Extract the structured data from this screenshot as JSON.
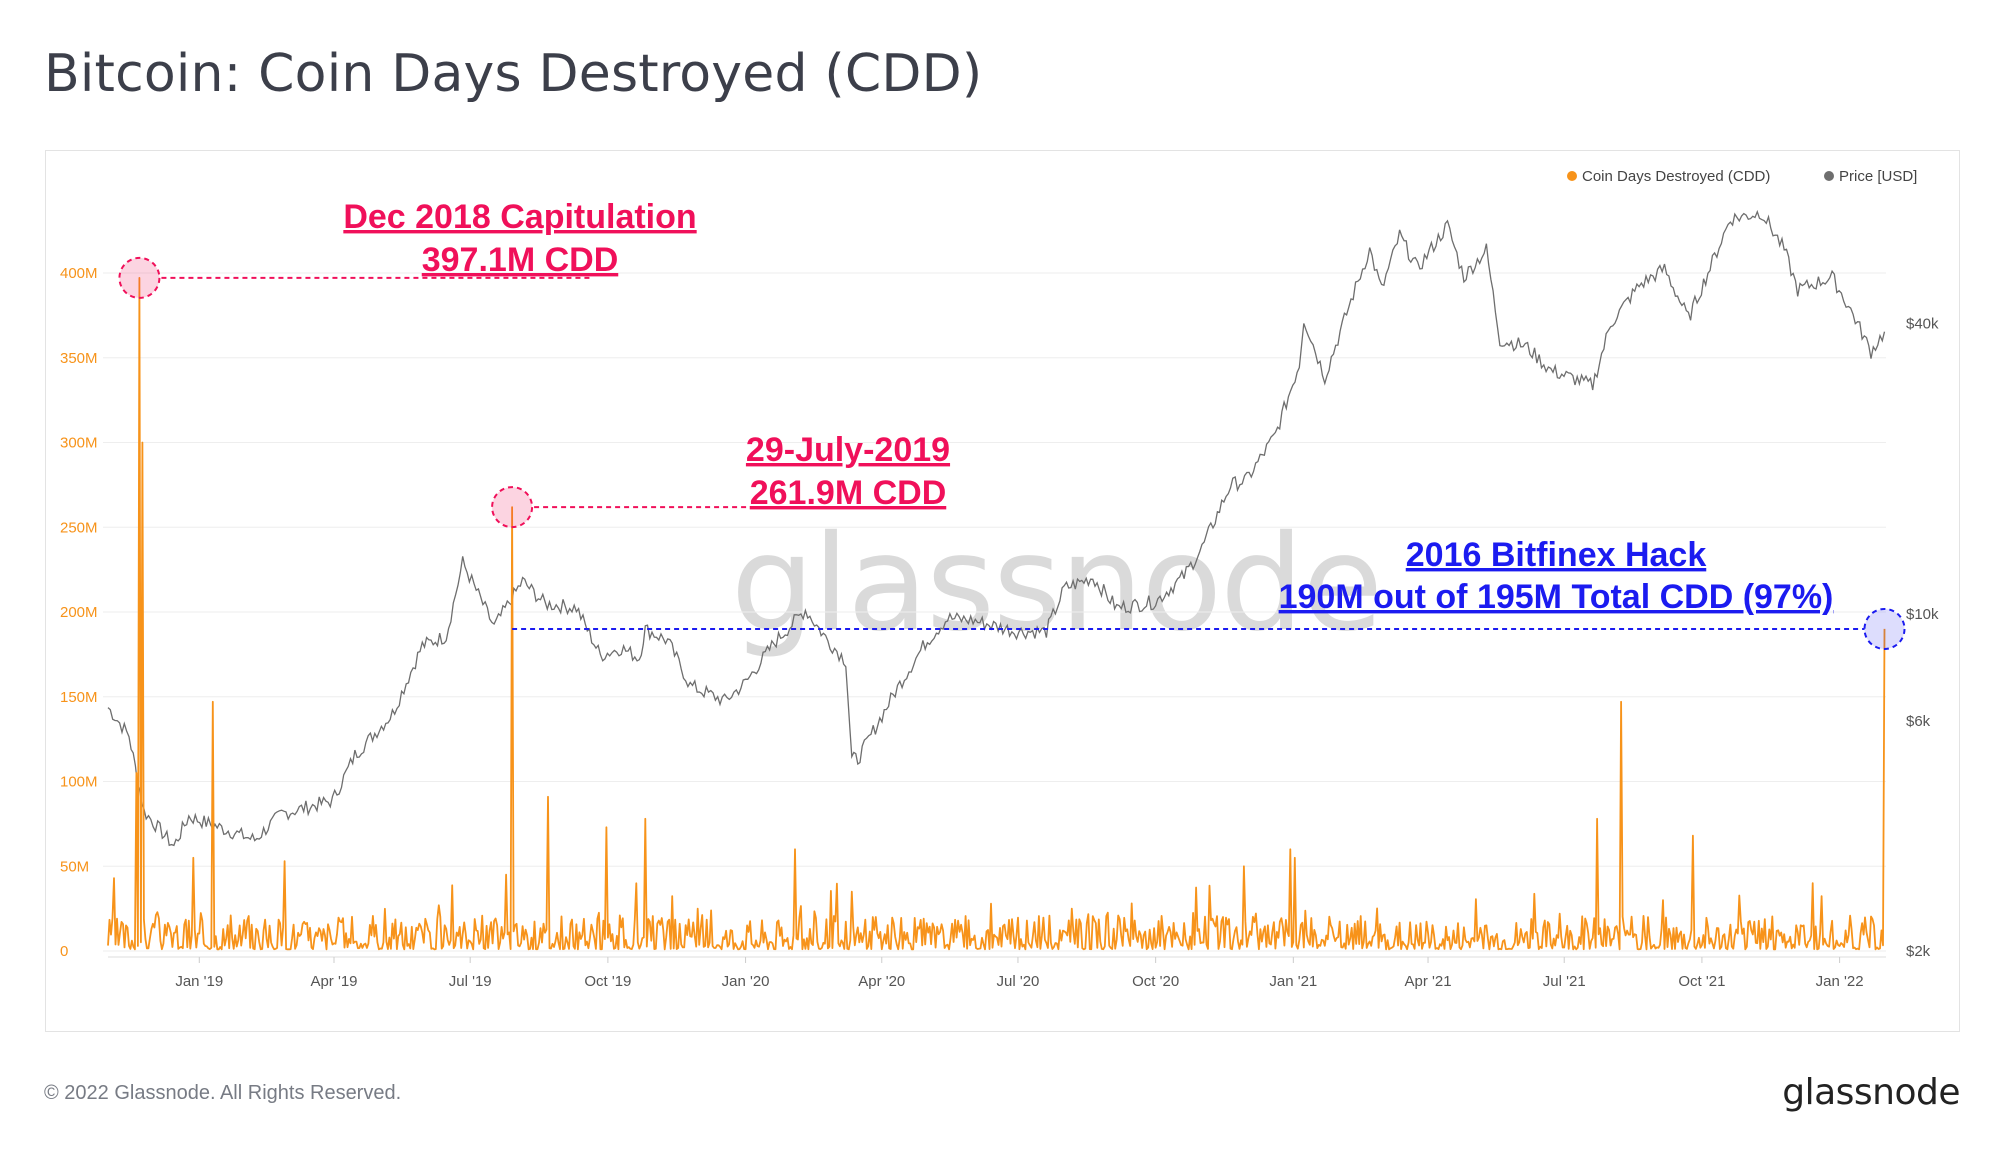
{
  "header": {
    "title": "Bitcoin: Coin Days Destroyed (CDD)"
  },
  "footer": {
    "copyright": "© 2022 Glassnode. All Rights Reserved.",
    "logo": "glassnode"
  },
  "watermark": "glassnode",
  "colors": {
    "cdd": "#f7931a",
    "price": "#6e6e6e",
    "pink": "#f0105a",
    "blue": "#1b1bf0",
    "axis_text": "#f7931a",
    "right_axis_text": "#555555"
  },
  "legend": [
    {
      "label": "Coin Days Destroyed (CDD)",
      "color": "#f7931a"
    },
    {
      "label": "Price [USD]",
      "color": "#6e6e6e"
    }
  ],
  "annotations": [
    {
      "line1": "Dec 2018 Capitulation",
      "line2": "397.1M CDD",
      "color": "#f0105a"
    },
    {
      "line1": "29-July-2019",
      "line2": "261.9M CDD",
      "color": "#f0105a"
    },
    {
      "line1": "2016 Bitfinex Hack",
      "line2": "190M out of 195M Total CDD (97%)",
      "color": "#1b1bf0"
    }
  ],
  "chart_data": {
    "type": "line",
    "x_range": [
      "2018-11-01",
      "2022-02-01"
    ],
    "left_axis": {
      "ticks": [
        "0",
        "50M",
        "100M",
        "150M",
        "200M",
        "250M",
        "300M",
        "350M",
        "400M"
      ],
      "values": [
        0,
        50,
        100,
        150,
        200,
        250,
        300,
        350,
        400
      ],
      "unit": "M",
      "ylim": [
        0,
        400
      ]
    },
    "right_axis": {
      "scale": "log",
      "ticks": [
        "$2k",
        "$6k",
        "$10k",
        "$40k"
      ],
      "values": [
        2000,
        6000,
        10000,
        40000
      ]
    },
    "x_ticks": [
      {
        "label": "Jan '19",
        "date": "2019-01-01"
      },
      {
        "label": "Apr '19",
        "date": "2019-04-01"
      },
      {
        "label": "Jul '19",
        "date": "2019-07-01"
      },
      {
        "label": "Oct '19",
        "date": "2019-10-01"
      },
      {
        "label": "Jan '20",
        "date": "2020-01-01"
      },
      {
        "label": "Apr '20",
        "date": "2020-04-01"
      },
      {
        "label": "Jul '20",
        "date": "2020-07-01"
      },
      {
        "label": "Oct '20",
        "date": "2020-10-01"
      },
      {
        "label": "Jan '21",
        "date": "2021-01-01"
      },
      {
        "label": "Apr '21",
        "date": "2021-04-01"
      },
      {
        "label": "Jul '21",
        "date": "2021-07-01"
      },
      {
        "label": "Oct '21",
        "date": "2021-10-01"
      },
      {
        "label": "Jan '22",
        "date": "2022-01-01"
      }
    ],
    "series": [
      {
        "name": "Coin Days Destroyed (CDD)",
        "axis": "left",
        "spikes": [
          {
            "date": "2018-11-05",
            "value": 43
          },
          {
            "date": "2018-11-20",
            "value": 105
          },
          {
            "date": "2018-11-22",
            "value": 397.1
          },
          {
            "date": "2018-11-24",
            "value": 300
          },
          {
            "date": "2018-12-28",
            "value": 55
          },
          {
            "date": "2019-01-10",
            "value": 147
          },
          {
            "date": "2019-02-27",
            "value": 53
          },
          {
            "date": "2019-07-25",
            "value": 45
          },
          {
            "date": "2019-07-29",
            "value": 261.9
          },
          {
            "date": "2019-08-22",
            "value": 91
          },
          {
            "date": "2019-09-30",
            "value": 73
          },
          {
            "date": "2019-10-26",
            "value": 78
          },
          {
            "date": "2020-02-03",
            "value": 60
          },
          {
            "date": "2020-03-12",
            "value": 35
          },
          {
            "date": "2020-11-29",
            "value": 50
          },
          {
            "date": "2020-12-30",
            "value": 60
          },
          {
            "date": "2021-01-02",
            "value": 55
          },
          {
            "date": "2021-07-23",
            "value": 78
          },
          {
            "date": "2021-08-08",
            "value": 147
          },
          {
            "date": "2021-09-05",
            "value": 30
          },
          {
            "date": "2021-09-25",
            "value": 68
          },
          {
            "date": "2021-12-14",
            "value": 40
          },
          {
            "date": "2022-01-31",
            "value": 190
          }
        ],
        "baseline_typical": 10
      },
      {
        "name": "Price [USD]",
        "axis": "right",
        "points": [
          [
            "2018-11-01",
            6400
          ],
          [
            "2018-11-15",
            5600
          ],
          [
            "2018-11-25",
            3900
          ],
          [
            "2018-12-15",
            3300
          ],
          [
            "2018-12-25",
            3800
          ],
          [
            "2019-01-10",
            3650
          ],
          [
            "2019-02-07",
            3400
          ],
          [
            "2019-02-25",
            3850
          ],
          [
            "2019-03-31",
            4100
          ],
          [
            "2019-04-15",
            5100
          ],
          [
            "2019-05-10",
            6200
          ],
          [
            "2019-05-30",
            8600
          ],
          [
            "2019-06-15",
            9000
          ],
          [
            "2019-06-26",
            12800
          ],
          [
            "2019-07-05",
            11200
          ],
          [
            "2019-07-17",
            9400
          ],
          [
            "2019-08-05",
            11700
          ],
          [
            "2019-08-20",
            10500
          ],
          [
            "2019-09-10",
            10300
          ],
          [
            "2019-09-26",
            8200
          ],
          [
            "2019-10-10",
            8500
          ],
          [
            "2019-10-22",
            8100
          ],
          [
            "2019-10-26",
            9300
          ],
          [
            "2019-11-10",
            8800
          ],
          [
            "2019-11-25",
            7100
          ],
          [
            "2019-12-18",
            6600
          ],
          [
            "2020-01-01",
            7200
          ],
          [
            "2020-01-20",
            8700
          ],
          [
            "2020-02-10",
            10200
          ],
          [
            "2020-02-25",
            8800
          ],
          [
            "2020-03-08",
            8000
          ],
          [
            "2020-03-12",
            5000
          ],
          [
            "2020-03-16",
            5000
          ],
          [
            "2020-04-10",
            6900
          ],
          [
            "2020-04-30",
            8700
          ],
          [
            "2020-05-15",
            9800
          ],
          [
            "2020-06-01",
            9700
          ],
          [
            "2020-06-30",
            9200
          ],
          [
            "2020-07-20",
            9200
          ],
          [
            "2020-08-01",
            11300
          ],
          [
            "2020-08-20",
            11900
          ],
          [
            "2020-09-05",
            10300
          ],
          [
            "2020-10-01",
            10600
          ],
          [
            "2020-10-20",
            12000
          ],
          [
            "2020-11-01",
            13700
          ],
          [
            "2020-11-20",
            18500
          ],
          [
            "2020-12-01",
            19000
          ],
          [
            "2020-12-20",
            23500
          ],
          [
            "2021-01-05",
            33000
          ],
          [
            "2021-01-08",
            41000
          ],
          [
            "2021-01-22",
            31000
          ],
          [
            "2021-02-10",
            46000
          ],
          [
            "2021-02-21",
            57000
          ],
          [
            "2021-03-01",
            47000
          ],
          [
            "2021-03-13",
            61000
          ],
          [
            "2021-03-25",
            52000
          ],
          [
            "2021-04-14",
            64000
          ],
          [
            "2021-04-25",
            50000
          ],
          [
            "2021-05-10",
            57000
          ],
          [
            "2021-05-19",
            37000
          ],
          [
            "2021-06-05",
            36000
          ],
          [
            "2021-06-22",
            32000
          ],
          [
            "2021-07-20",
            29800
          ],
          [
            "2021-08-01",
            40000
          ],
          [
            "2021-08-20",
            48000
          ],
          [
            "2021-09-06",
            52000
          ],
          [
            "2021-09-22",
            41000
          ],
          [
            "2021-10-05",
            51000
          ],
          [
            "2021-10-20",
            66000
          ],
          [
            "2021-11-10",
            68000
          ],
          [
            "2021-11-25",
            57000
          ],
          [
            "2021-12-04",
            47000
          ],
          [
            "2021-12-27",
            50000
          ],
          [
            "2022-01-10",
            41800
          ],
          [
            "2022-01-22",
            35000
          ],
          [
            "2022-01-31",
            38500
          ]
        ]
      }
    ],
    "grid": true,
    "legend_position": "top-right"
  }
}
